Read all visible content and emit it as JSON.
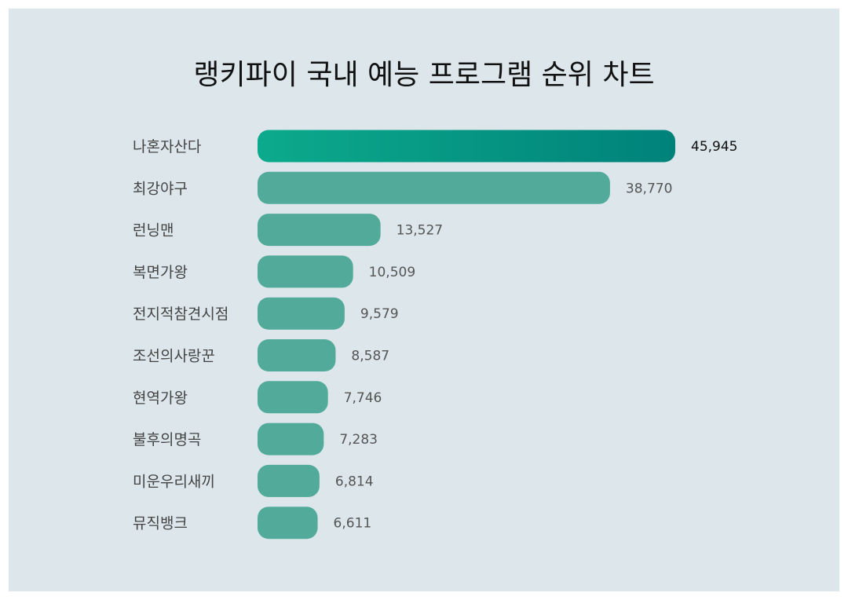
{
  "colors": {
    "background": "#dce6eb",
    "bar": "#52ab9a",
    "top_bar_start": "#0caa8c",
    "top_bar_end": "#00827a"
  },
  "chart_data": {
    "type": "bar",
    "orientation": "horizontal",
    "title": "랭키파이 국내 예능 프로그램 순위 차트",
    "categories": [
      "나혼자산다",
      "최강야구",
      "런닝맨",
      "복면가왕",
      "전지적참견시점",
      "조선의사랑꾼",
      "현역가왕",
      "불후의명곡",
      "미운우리새끼",
      "뮤직뱅크"
    ],
    "values": [
      45945,
      38770,
      13527,
      10509,
      9579,
      8587,
      7746,
      7283,
      6814,
      6611
    ],
    "value_labels": [
      "45,945",
      "38,770",
      "13,527",
      "10,509",
      "9,579",
      "8,587",
      "7,746",
      "7,283",
      "6,814",
      "6,611"
    ],
    "xlabel": "",
    "ylabel": "",
    "grid": false,
    "legend": "none"
  }
}
